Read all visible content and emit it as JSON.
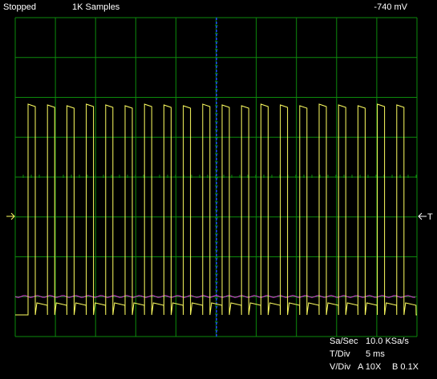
{
  "status": {
    "state": "Stopped",
    "samples": "1K Samples",
    "trigger_level": "-740 mV"
  },
  "settings": {
    "sa_sec_label": "Sa/Sec",
    "sa_sec_value": "10.0 KSa/s",
    "t_div_label": "T/Div",
    "t_div_value": "5 ms",
    "v_div_label": "V/Div",
    "channel_a": "A 10X",
    "channel_b": "B 0.1X"
  },
  "trigger_marker": "T"
}
